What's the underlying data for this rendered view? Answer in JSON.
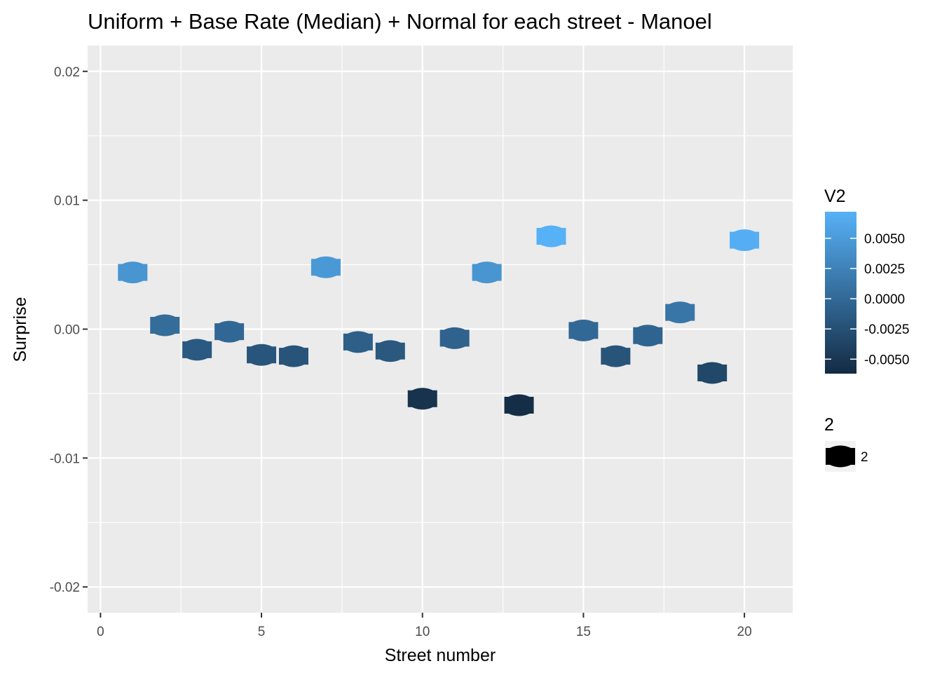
{
  "chart_data": {
    "type": "scatter",
    "title": "Uniform + Base Rate (Median) + Normal for each street - Manoel",
    "xlabel": "Street number",
    "ylabel": "Surprise",
    "xlim": [
      -0.4,
      21.5
    ],
    "ylim": [
      -0.022,
      0.022
    ],
    "x_ticks": [
      0,
      5,
      10,
      15,
      20
    ],
    "x_tick_labels": [
      "0",
      "5",
      "10",
      "15",
      "20"
    ],
    "y_ticks": [
      0.02,
      0.01,
      0.0,
      -0.01,
      -0.02
    ],
    "y_tick_labels": [
      "0.02",
      "0.01",
      "0.00",
      "-0.01",
      "-0.02"
    ],
    "grid": true,
    "legend_position": "right",
    "points": [
      {
        "x": 1,
        "y": 0.0044
      },
      {
        "x": 2,
        "y": 0.0003
      },
      {
        "x": 3,
        "y": -0.0016
      },
      {
        "x": 4,
        "y": -0.0002
      },
      {
        "x": 5,
        "y": -0.002
      },
      {
        "x": 6,
        "y": -0.0021
      },
      {
        "x": 7,
        "y": 0.0048
      },
      {
        "x": 8,
        "y": -0.001
      },
      {
        "x": 9,
        "y": -0.0017
      },
      {
        "x": 10,
        "y": -0.0054
      },
      {
        "x": 11,
        "y": -0.0007
      },
      {
        "x": 12,
        "y": 0.0044
      },
      {
        "x": 13,
        "y": -0.0059
      },
      {
        "x": 14,
        "y": 0.0072
      },
      {
        "x": 15,
        "y": -0.0001
      },
      {
        "x": 16,
        "y": -0.0021
      },
      {
        "x": 17,
        "y": -0.0005
      },
      {
        "x": 18,
        "y": 0.0013
      },
      {
        "x": 19,
        "y": -0.0034
      },
      {
        "x": 20,
        "y": 0.0069
      }
    ],
    "color_legend": {
      "title": "V2",
      "range": [
        -0.0062,
        0.0072
      ],
      "low_color": "#132B43",
      "high_color": "#56B1F7",
      "ticks": [
        0.005,
        0.0025,
        0.0,
        -0.0025,
        -0.005
      ],
      "tick_labels": [
        "0.0050",
        "0.0025",
        "0.0000",
        "-0.0025",
        "-0.0050"
      ]
    },
    "shape_legend": {
      "title": "2",
      "label": "2"
    }
  },
  "colors": {
    "panel_background": "#EBEBEB",
    "grid_line": "#FFFFFF",
    "tick_text": "#4D4D4D",
    "tick_mark": "#333333"
  }
}
